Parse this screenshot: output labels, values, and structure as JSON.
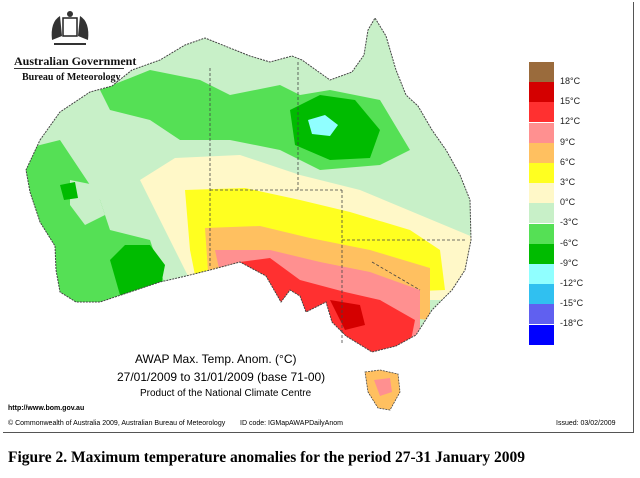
{
  "header": {
    "org": "Australian Government",
    "bureau": "Bureau of Meteorology"
  },
  "legend": {
    "colors": [
      "#9a6b3c",
      "#d40000",
      "#ff3030",
      "#ff9090",
      "#ffc060",
      "#ffff20",
      "#fff8c8",
      "#c8f0c8",
      "#55e055",
      "#00bb00",
      "#90ffff",
      "#30c0f0",
      "#6060f0",
      "#0000ff"
    ],
    "labels": [
      "18°C",
      "15°C",
      "12°C",
      "9°C",
      "6°C",
      "3°C",
      "0°C",
      "-3°C",
      "-6°C",
      "-9°C",
      "-12°C",
      "-15°C",
      "-18°C"
    ]
  },
  "map": {
    "title": "AWAP Max. Temp. Anom. (°C)",
    "dates": "27/01/2009 to 31/01/2009 (base 71-00)",
    "product": "Product of the National Climate Centre"
  },
  "footer": {
    "url": "http://www.bom.gov.au",
    "copyright": "© Commonwealth of Australia 2009, Australian Bureau of Meteorology",
    "id_code": "ID code: IGMapAWAPDailyAnom",
    "issued": "Issued: 03/02/2009"
  },
  "caption": "Figure 2. Maximum temperature anomalies for the period 27-31 January 2009"
}
